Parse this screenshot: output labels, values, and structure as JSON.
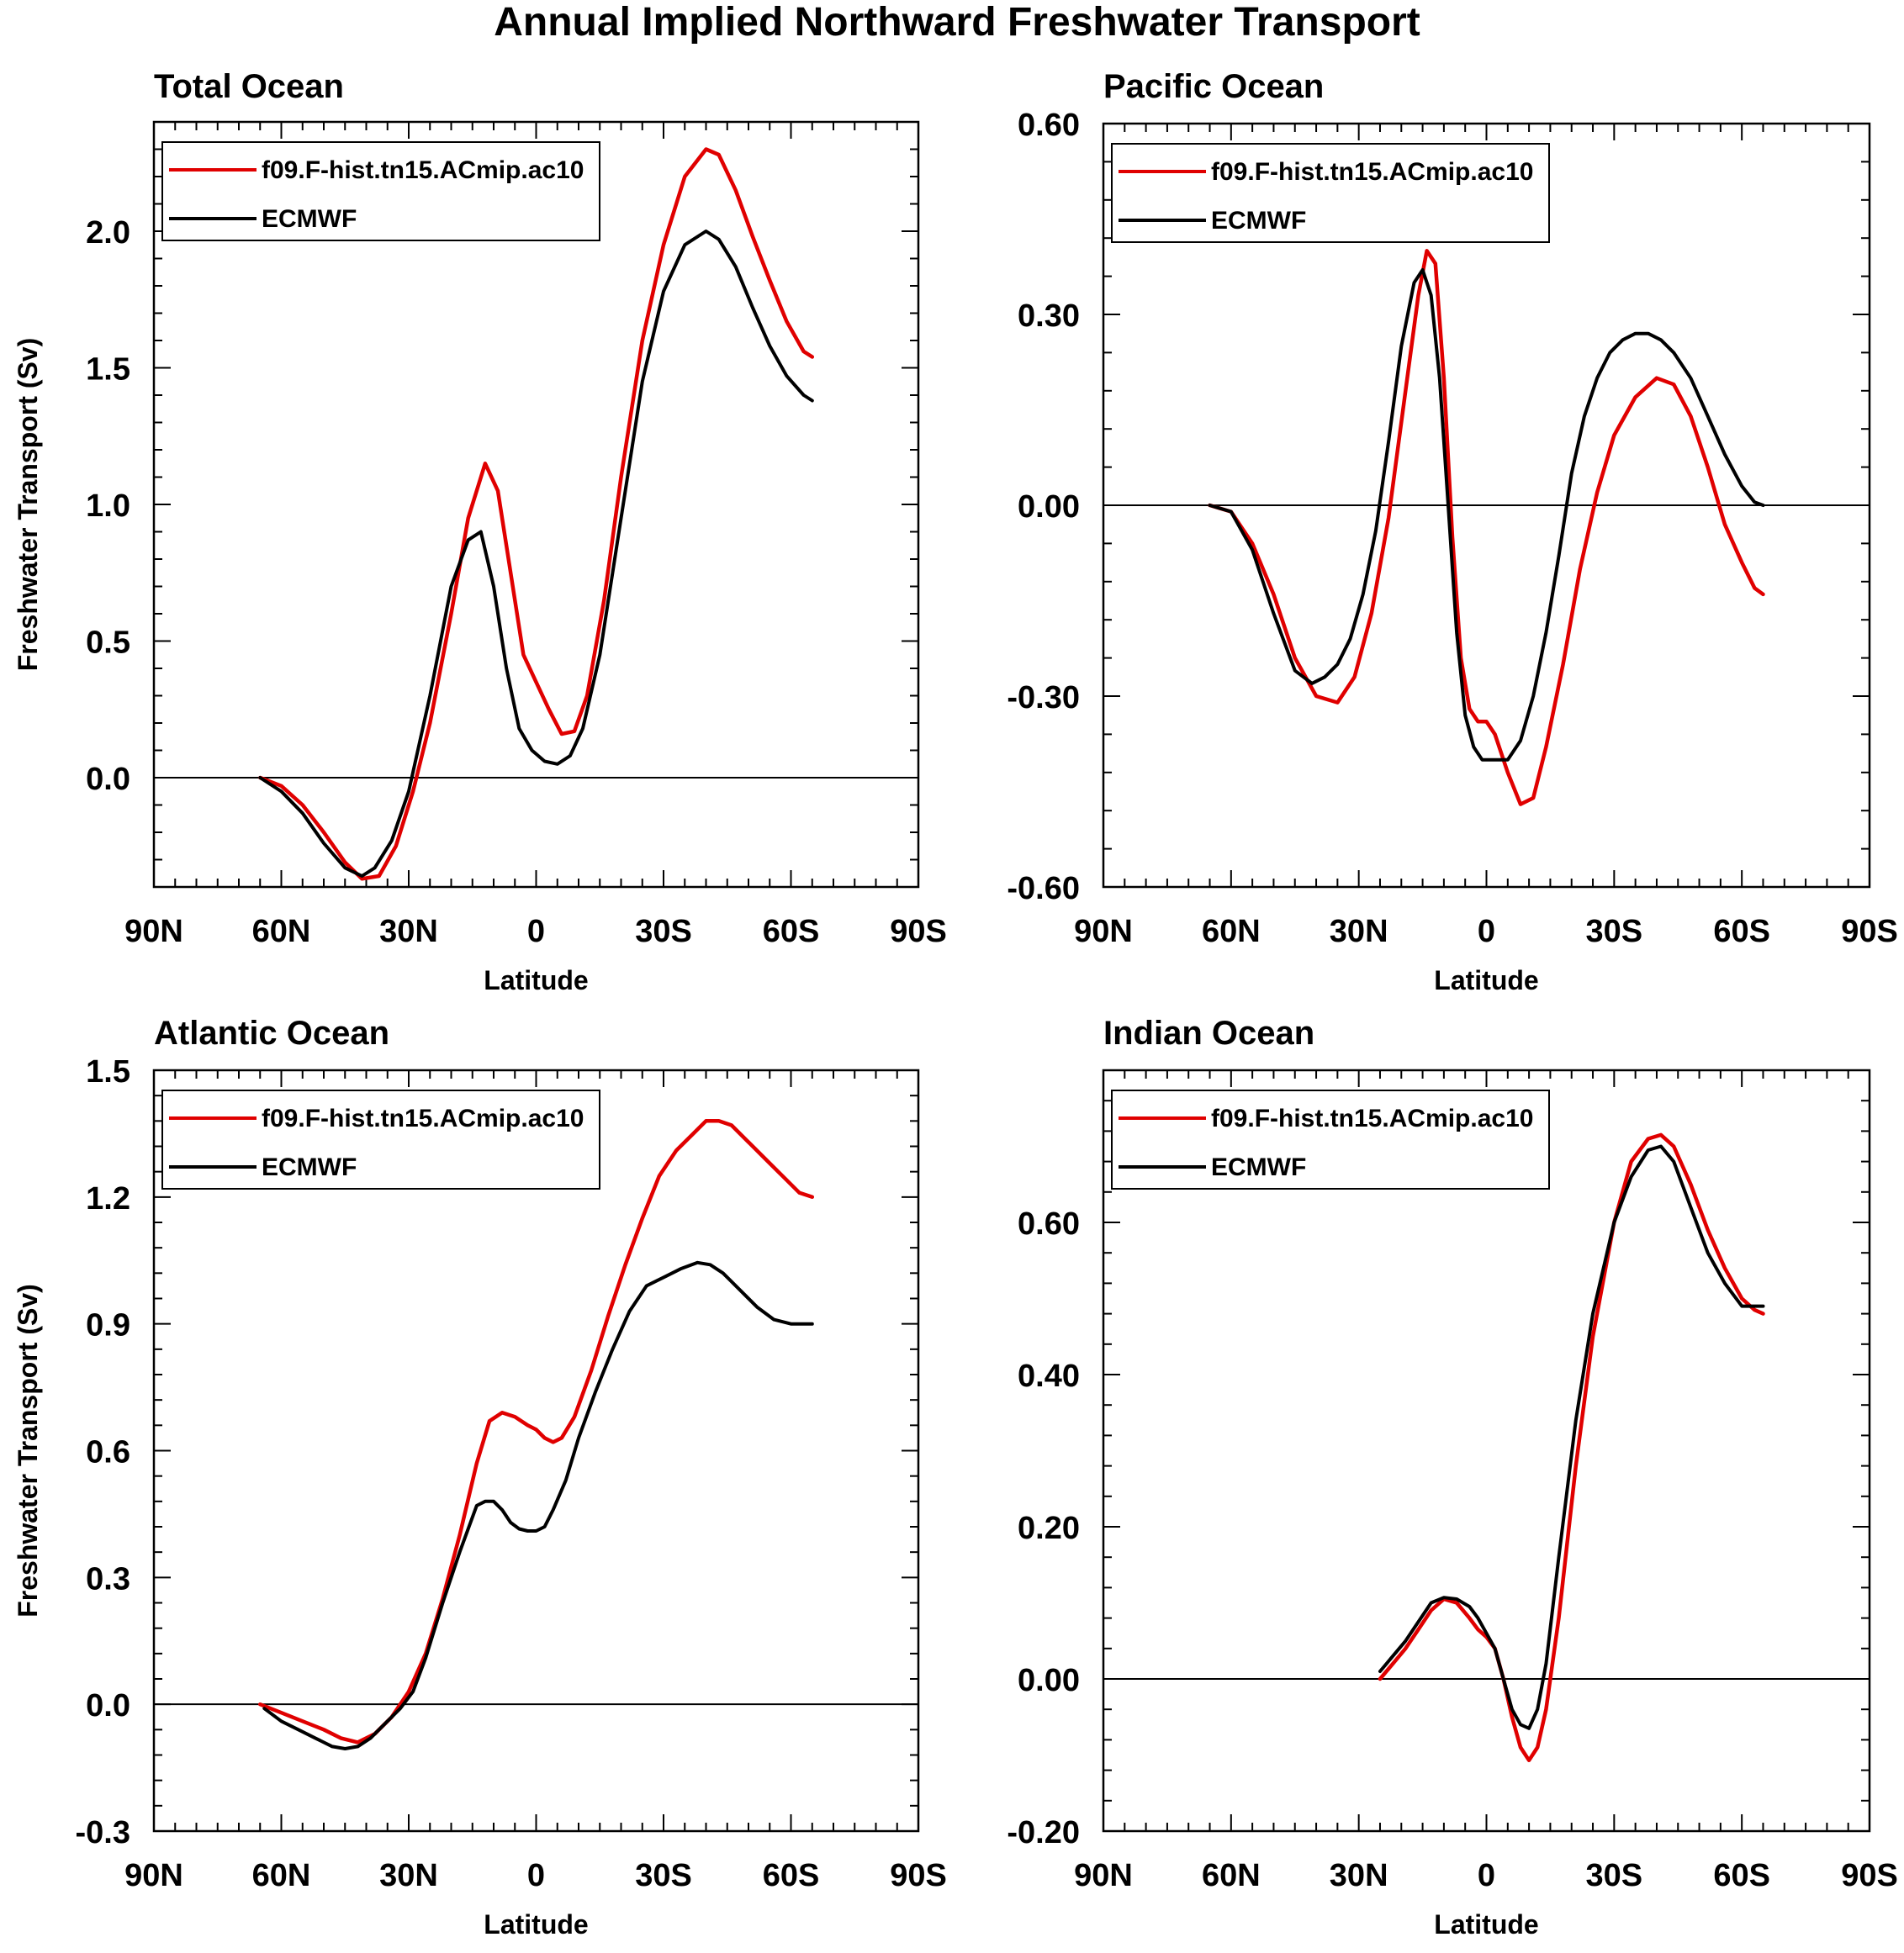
{
  "figure_title": "Annual Implied Northward Freshwater Transport",
  "colors": {
    "model": "#e00000",
    "obs": "#000000"
  },
  "chart_data": [
    {
      "type": "line",
      "title": "Total Ocean",
      "xlabel": "Latitude",
      "ylabel": "Freshwater Transport (Sv)",
      "xlim": [
        90,
        -90
      ],
      "xticks": [
        90,
        60,
        30,
        0,
        -30,
        -60,
        -90
      ],
      "xtick_labels": [
        "90N",
        "60N",
        "30N",
        "0",
        "30S",
        "60S",
        "90S"
      ],
      "ylim": [
        -0.4,
        2.4
      ],
      "yticks": [
        0.0,
        0.5,
        1.0,
        1.5,
        2.0
      ],
      "ytick_labels": [
        "0.0",
        "0.5",
        "1.0",
        "1.5",
        "2.0"
      ],
      "legend": "top-left",
      "series": [
        {
          "name": "f09.F-hist.tn15.ACmip.ac10",
          "color": "#e00000",
          "x": [
            65,
            60,
            55,
            50,
            45,
            41,
            37,
            33,
            29,
            25,
            20,
            16,
            12,
            9,
            6,
            3,
            0,
            -3,
            -6,
            -9,
            -12,
            -16,
            -20,
            -25,
            -30,
            -35,
            -40,
            -43,
            -47,
            -51,
            -55,
            -59,
            -63,
            -65
          ],
          "y": [
            0.0,
            -0.03,
            -0.1,
            -0.2,
            -0.31,
            -0.37,
            -0.36,
            -0.25,
            -0.05,
            0.2,
            0.6,
            0.95,
            1.15,
            1.05,
            0.75,
            0.45,
            0.35,
            0.25,
            0.16,
            0.17,
            0.3,
            0.65,
            1.1,
            1.6,
            1.95,
            2.2,
            2.3,
            2.28,
            2.15,
            1.98,
            1.82,
            1.67,
            1.56,
            1.54
          ]
        },
        {
          "name": "ECMWF",
          "color": "#000000",
          "x": [
            65,
            60,
            55,
            50,
            45,
            41,
            38,
            34,
            30,
            25,
            20,
            16,
            13,
            10,
            7,
            4,
            1,
            -2,
            -5,
            -8,
            -11,
            -15,
            -20,
            -25,
            -30,
            -35,
            -40,
            -43,
            -47,
            -51,
            -55,
            -59,
            -63,
            -65
          ],
          "y": [
            0.0,
            -0.05,
            -0.13,
            -0.24,
            -0.33,
            -0.36,
            -0.33,
            -0.23,
            -0.05,
            0.3,
            0.7,
            0.87,
            0.9,
            0.7,
            0.4,
            0.18,
            0.1,
            0.06,
            0.05,
            0.08,
            0.18,
            0.45,
            0.95,
            1.45,
            1.78,
            1.95,
            2.0,
            1.97,
            1.87,
            1.72,
            1.58,
            1.47,
            1.4,
            1.38
          ]
        }
      ]
    },
    {
      "type": "line",
      "title": "Pacific Ocean",
      "xlabel": "Latitude",
      "ylabel": "",
      "xlim": [
        90,
        -90
      ],
      "xticks": [
        90,
        60,
        30,
        0,
        -30,
        -60,
        -90
      ],
      "xtick_labels": [
        "90N",
        "60N",
        "30N",
        "0",
        "30S",
        "60S",
        "90S"
      ],
      "ylim": [
        -0.6,
        0.6
      ],
      "yticks": [
        -0.6,
        -0.3,
        0.0,
        0.3,
        0.6
      ],
      "ytick_labels": [
        "-0.60",
        "-0.30",
        "0.00",
        "0.30",
        "0.60"
      ],
      "legend": "top-left",
      "series": [
        {
          "name": "f09.F-hist.tn15.ACmip.ac10",
          "color": "#e00000",
          "x": [
            65,
            60,
            55,
            50,
            45,
            40,
            35,
            31,
            27,
            23,
            19,
            16,
            14,
            12,
            10,
            8,
            6,
            4,
            2,
            0,
            -2,
            -5,
            -8,
            -11,
            -14,
            -18,
            -22,
            -26,
            -30,
            -35,
            -40,
            -44,
            -48,
            -52,
            -56,
            -60,
            -63,
            -65
          ],
          "y": [
            0.0,
            -0.01,
            -0.06,
            -0.14,
            -0.24,
            -0.3,
            -0.31,
            -0.27,
            -0.17,
            -0.02,
            0.18,
            0.33,
            0.4,
            0.38,
            0.2,
            -0.05,
            -0.24,
            -0.32,
            -0.34,
            -0.34,
            -0.36,
            -0.42,
            -0.47,
            -0.46,
            -0.38,
            -0.25,
            -0.1,
            0.02,
            0.11,
            0.17,
            0.2,
            0.19,
            0.14,
            0.06,
            -0.03,
            -0.09,
            -0.13,
            -0.14
          ]
        },
        {
          "name": "ECMWF",
          "color": "#000000",
          "x": [
            65,
            60,
            55,
            50,
            45,
            41,
            38,
            35,
            32,
            29,
            26,
            23,
            20,
            17,
            15,
            13,
            11,
            9,
            7,
            5,
            3,
            1,
            -2,
            -5,
            -8,
            -11,
            -14,
            -17,
            -20,
            -23,
            -26,
            -29,
            -32,
            -35,
            -38,
            -41,
            -44,
            -48,
            -52,
            -56,
            -60,
            -63,
            -65
          ],
          "y": [
            0.0,
            -0.01,
            -0.07,
            -0.17,
            -0.26,
            -0.28,
            -0.27,
            -0.25,
            -0.21,
            -0.14,
            -0.04,
            0.1,
            0.25,
            0.35,
            0.37,
            0.33,
            0.2,
            0.0,
            -0.2,
            -0.33,
            -0.38,
            -0.4,
            -0.4,
            -0.4,
            -0.37,
            -0.3,
            -0.2,
            -0.08,
            0.05,
            0.14,
            0.2,
            0.24,
            0.26,
            0.27,
            0.27,
            0.26,
            0.24,
            0.2,
            0.14,
            0.08,
            0.03,
            0.005,
            0.0
          ]
        }
      ]
    },
    {
      "type": "line",
      "title": "Atlantic Ocean",
      "xlabel": "Latitude",
      "ylabel": "Freshwater Transport (Sv)",
      "xlim": [
        90,
        -90
      ],
      "xticks": [
        90,
        60,
        30,
        0,
        -30,
        -60,
        -90
      ],
      "xtick_labels": [
        "90N",
        "60N",
        "30N",
        "0",
        "30S",
        "60S",
        "90S"
      ],
      "ylim": [
        -0.3,
        1.5
      ],
      "yticks": [
        -0.3,
        0.0,
        0.3,
        0.6,
        0.9,
        1.2,
        1.5
      ],
      "ytick_labels": [
        "-0.3",
        "0.0",
        "0.3",
        "0.6",
        "0.9",
        "1.2",
        "1.5"
      ],
      "legend": "top-left",
      "series": [
        {
          "name": "f09.F-hist.tn15.ACmip.ac10",
          "color": "#e00000",
          "x": [
            65,
            60,
            55,
            50,
            46,
            42,
            38,
            34,
            30,
            26,
            22,
            18,
            14,
            11,
            8,
            5,
            2,
            0,
            -2,
            -4,
            -6,
            -9,
            -13,
            -17,
            -21,
            -25,
            -29,
            -33,
            -37,
            -40,
            -43,
            -46,
            -50,
            -54,
            -58,
            -62,
            -65
          ],
          "y": [
            0.0,
            -0.02,
            -0.04,
            -0.06,
            -0.08,
            -0.09,
            -0.07,
            -0.03,
            0.03,
            0.12,
            0.25,
            0.4,
            0.57,
            0.67,
            0.69,
            0.68,
            0.66,
            0.65,
            0.63,
            0.62,
            0.63,
            0.68,
            0.79,
            0.92,
            1.04,
            1.15,
            1.25,
            1.31,
            1.35,
            1.38,
            1.38,
            1.37,
            1.33,
            1.29,
            1.25,
            1.21,
            1.2
          ]
        },
        {
          "name": "ECMWF",
          "color": "#000000",
          "x": [
            64,
            60,
            56,
            52,
            48,
            45,
            42,
            39,
            36,
            32,
            29,
            26,
            22,
            18,
            14,
            12,
            10,
            8,
            6,
            4,
            2,
            0,
            -2,
            -4,
            -7,
            -10,
            -14,
            -18,
            -22,
            -26,
            -30,
            -34,
            -38,
            -41,
            -44,
            -48,
            -52,
            -56,
            -60,
            -63,
            -65
          ],
          "y": [
            -0.01,
            -0.04,
            -0.06,
            -0.08,
            -0.1,
            -0.105,
            -0.1,
            -0.08,
            -0.05,
            -0.01,
            0.03,
            0.11,
            0.24,
            0.36,
            0.47,
            0.48,
            0.48,
            0.46,
            0.43,
            0.415,
            0.41,
            0.41,
            0.42,
            0.46,
            0.53,
            0.63,
            0.74,
            0.84,
            0.93,
            0.99,
            1.01,
            1.03,
            1.045,
            1.04,
            1.02,
            0.98,
            0.94,
            0.91,
            0.9,
            0.9,
            0.9
          ]
        }
      ]
    },
    {
      "type": "line",
      "title": "Indian Ocean",
      "xlabel": "Latitude",
      "ylabel": "",
      "xlim": [
        90,
        -90
      ],
      "xticks": [
        90,
        60,
        30,
        0,
        -30,
        -60,
        -90
      ],
      "xtick_labels": [
        "90N",
        "60N",
        "30N",
        "0",
        "30S",
        "60S",
        "90S"
      ],
      "ylim": [
        -0.2,
        0.8
      ],
      "yticks": [
        -0.2,
        0.0,
        0.2,
        0.4,
        0.6
      ],
      "ytick_labels": [
        "-0.20",
        "0.00",
        "0.20",
        "0.40",
        "0.60"
      ],
      "legend": "top-left",
      "series": [
        {
          "name": "f09.F-hist.tn15.ACmip.ac10",
          "color": "#e00000",
          "x": [
            25,
            22,
            19,
            16,
            13,
            10,
            7,
            4,
            2,
            0,
            -2,
            -4,
            -6,
            -8,
            -10,
            -12,
            -14,
            -17,
            -21,
            -25,
            -30,
            -34,
            -38,
            -41,
            -44,
            -48,
            -52,
            -56,
            -60,
            -63,
            -65
          ],
          "y": [
            0.0,
            0.02,
            0.04,
            0.065,
            0.09,
            0.105,
            0.1,
            0.08,
            0.065,
            0.055,
            0.04,
            0.0,
            -0.05,
            -0.09,
            -0.107,
            -0.09,
            -0.04,
            0.08,
            0.28,
            0.45,
            0.6,
            0.68,
            0.71,
            0.715,
            0.7,
            0.65,
            0.59,
            0.54,
            0.5,
            0.485,
            0.48
          ]
        },
        {
          "name": "ECMWF",
          "color": "#000000",
          "x": [
            25,
            22,
            19,
            16,
            13,
            10,
            7,
            4,
            2,
            0,
            -2,
            -4,
            -6,
            -8,
            -10,
            -12,
            -14,
            -17,
            -21,
            -25,
            -30,
            -34,
            -38,
            -41,
            -44,
            -48,
            -52,
            -56,
            -60,
            -63,
            -65
          ],
          "y": [
            0.01,
            0.03,
            0.05,
            0.075,
            0.1,
            0.107,
            0.105,
            0.095,
            0.08,
            0.06,
            0.04,
            0.0,
            -0.04,
            -0.06,
            -0.065,
            -0.04,
            0.02,
            0.16,
            0.34,
            0.48,
            0.6,
            0.66,
            0.695,
            0.7,
            0.68,
            0.62,
            0.56,
            0.52,
            0.49,
            0.49,
            0.49
          ]
        }
      ]
    }
  ]
}
